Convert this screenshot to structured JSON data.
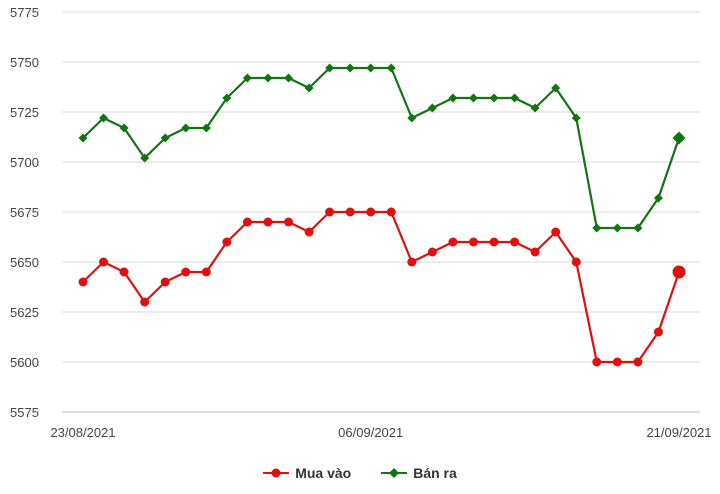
{
  "chart_data": {
    "type": "line",
    "x": [
      "23/08/2021",
      "24/08/2021",
      "25/08/2021",
      "26/08/2021",
      "27/08/2021",
      "28/08/2021",
      "29/08/2021",
      "30/08/2021",
      "31/08/2021",
      "01/09/2021",
      "02/09/2021",
      "03/09/2021",
      "04/09/2021",
      "05/09/2021",
      "06/09/2021",
      "07/09/2021",
      "08/09/2021",
      "09/09/2021",
      "10/09/2021",
      "11/09/2021",
      "12/09/2021",
      "13/09/2021",
      "14/09/2021",
      "15/09/2021",
      "16/09/2021",
      "17/09/2021",
      "18/09/2021",
      "19/09/2021",
      "20/09/2021",
      "21/09/2021"
    ],
    "x_tick_labels": [
      "23/08/2021",
      "06/09/2021",
      "21/09/2021"
    ],
    "x_tick_index": [
      0,
      14,
      29
    ],
    "ylim": [
      5575,
      5775
    ],
    "yticks": [
      5575,
      5600,
      5625,
      5650,
      5675,
      5700,
      5725,
      5750,
      5775
    ],
    "grid": true,
    "legend_position": "bottom",
    "series": [
      {
        "name": "Mua vào",
        "color": "#e01010",
        "marker": "circle",
        "values": [
          5640,
          5650,
          5645,
          5630,
          5640,
          5645,
          5645,
          5660,
          5670,
          5670,
          5670,
          5665,
          5675,
          5675,
          5675,
          5675,
          5650,
          5655,
          5660,
          5660,
          5660,
          5660,
          5655,
          5665,
          5650,
          5600,
          5600,
          5600,
          5615,
          5645
        ]
      },
      {
        "name": "Bán ra",
        "color": "#127512",
        "marker": "diamond",
        "values": [
          5712,
          5722,
          5717,
          5702,
          5712,
          5717,
          5717,
          5732,
          5742,
          5742,
          5742,
          5737,
          5747,
          5747,
          5747,
          5747,
          5722,
          5727,
          5732,
          5732,
          5732,
          5732,
          5727,
          5737,
          5722,
          5667,
          5667,
          5667,
          5682,
          5712
        ]
      }
    ]
  }
}
